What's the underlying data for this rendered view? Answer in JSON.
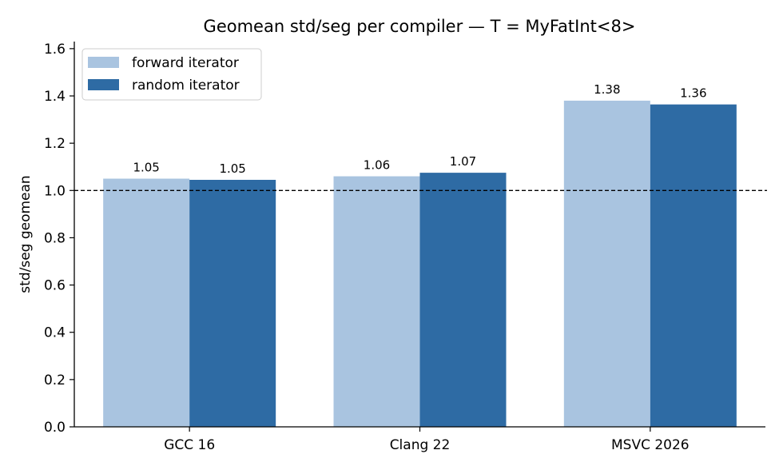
{
  "chart_data": {
    "type": "bar",
    "title": "Geomean std/seg per compiler — T = MyFatInt<8>",
    "xlabel": "",
    "ylabel": "std/seg geomean",
    "categories": [
      "GCC 16",
      "Clang 22",
      "MSVC 2026"
    ],
    "series": [
      {
        "name": "forward iterator",
        "values": [
          1.05,
          1.06,
          1.38
        ],
        "labels": [
          "1.05",
          "1.06",
          "1.38"
        ],
        "color": "#a9c4e0"
      },
      {
        "name": "random iterator",
        "values": [
          1.045,
          1.075,
          1.364
        ],
        "labels": [
          "1.05",
          "1.07",
          "1.36"
        ],
        "color": "#2e6ba4"
      }
    ],
    "ylim": [
      0,
      1.63
    ],
    "yticks": [
      "0.0",
      "0.2",
      "0.4",
      "0.6",
      "0.8",
      "1.0",
      "1.2",
      "1.4",
      "1.6"
    ],
    "reference_line": {
      "y": 1.0,
      "style": "dashed",
      "color": "#000000"
    },
    "legend": {
      "placement": "top-left"
    },
    "grid": false
  }
}
